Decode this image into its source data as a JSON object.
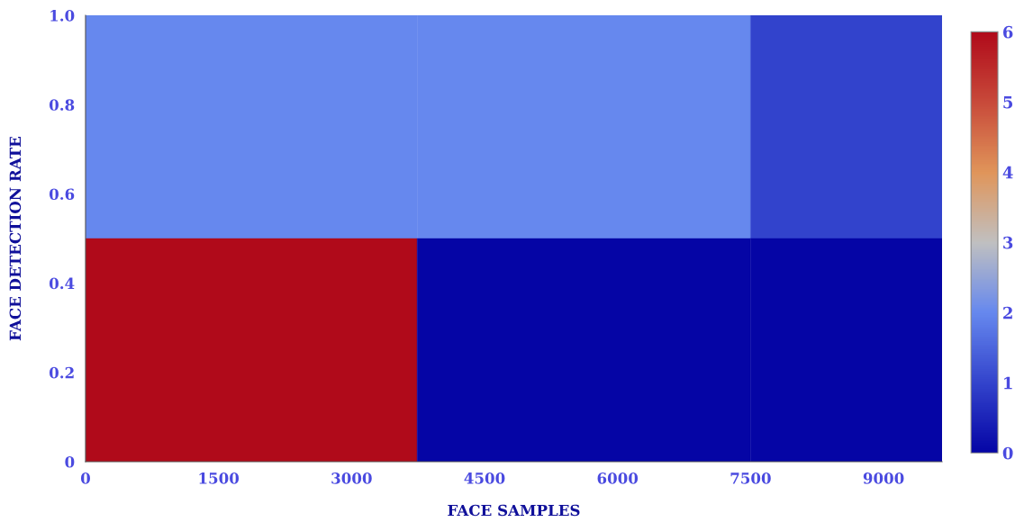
{
  "chart_data": {
    "type": "heatmap",
    "xlabel": "FACE SAMPLES",
    "ylabel": "FACE DETECTION RATE",
    "x": [
      0,
      3740,
      7500
    ],
    "cells": [
      [
        2,
        2,
        1
      ],
      [
        6,
        0,
        0
      ]
    ],
    "xlim": [
      0,
      9660
    ],
    "xticks": [
      0,
      1500,
      3000,
      4500,
      6000,
      7500,
      9000
    ],
    "ylim": [
      0,
      1
    ],
    "yticks": [
      0,
      0.2,
      0.4,
      0.6,
      0.8,
      {
        "value": 1,
        "label": "1.0"
      }
    ],
    "clim": [
      0,
      6
    ],
    "cticks": [
      0,
      1,
      2,
      3,
      4,
      5,
      6
    ]
  }
}
